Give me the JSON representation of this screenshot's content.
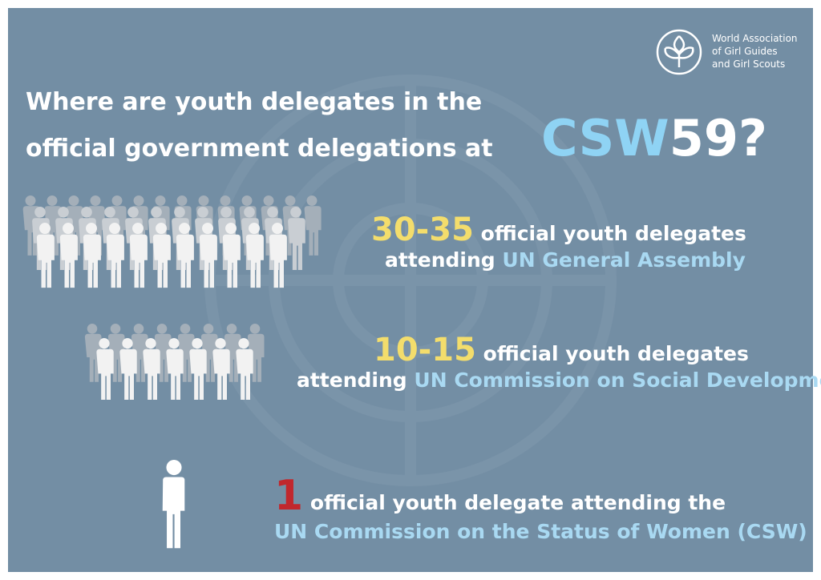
{
  "logo": {
    "lines": [
      "World Association",
      "of Girl Guides",
      "and Girl Scouts"
    ]
  },
  "header": {
    "title_lines": [
      "Where are youth delegates in the",
      "official government delegations at"
    ],
    "event_prefix": "CSW",
    "event_suffix": "59?"
  },
  "rows": [
    {
      "number": "30-35",
      "line1": "official youth delegates",
      "line2_prefix": "attending",
      "line2_body": "UN General Assembly"
    },
    {
      "number": "10-15",
      "line1": "official youth delegates",
      "line2_prefix": "attending",
      "line2_body": "UN Commission on Social Development"
    },
    {
      "number": "1",
      "line1": "official youth delegate attending the",
      "line2_body": "UN Commission on the Status of Women (CSW)"
    }
  ]
}
